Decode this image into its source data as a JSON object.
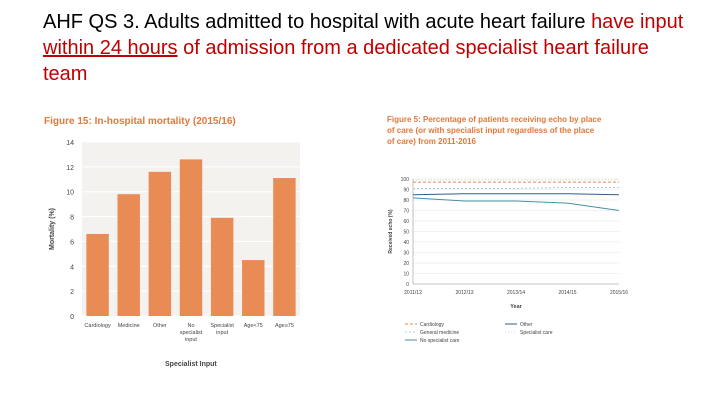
{
  "slide": {
    "title_prefix": "AHF QS 3. Adults admitted to hospital with acute heart failure",
    "title_red_1": "have input ",
    "title_red_underlined": "within 24 hours",
    "title_red_2": " of admission from a dedicated specialist heart failure team"
  },
  "colors": {
    "figure_title": "#e2783a",
    "bar": "#e98b55",
    "axis_text": "#444444",
    "cardiology": "#e9874f",
    "general_medicine": "#9fd3dd",
    "no_specialist_care": "#4b8fa6",
    "other": "#2f5f8a",
    "specialist_care": "#cde4b6"
  },
  "chart_data": [
    {
      "type": "bar",
      "title": "Figure 15: In-hospital mortality (2015/16)",
      "xlabel": "Specialist Input",
      "ylabel": "Mortality (%)",
      "ylim": [
        0,
        14
      ],
      "yticks": [
        0,
        2,
        4,
        6,
        8,
        10,
        12,
        14
      ],
      "grid": true,
      "categories": [
        "Cardiology",
        "Medicine",
        "Other",
        "No specialist input",
        "Specialist input",
        "Age<75",
        "Age≥75"
      ],
      "category_lines": [
        [
          "Cardiology"
        ],
        [
          "Medicine"
        ],
        [
          "Other"
        ],
        [
          "No",
          "specialist",
          "input"
        ],
        [
          "Specialist",
          "input"
        ],
        [
          "Age<75"
        ],
        [
          "Age≥75"
        ]
      ],
      "values": [
        6.6,
        9.8,
        11.6,
        12.6,
        7.9,
        4.5,
        11.1
      ]
    },
    {
      "type": "line",
      "title": "Figure 5: Percentage of patients receiving echo by place of care (or with specialist input regardless of the place of care) from 2011-2016",
      "title_lines": [
        "Figure 5: Percentage of patients receiving echo by place",
        "of care (or with specialist input regardless of the place",
        "of care) from 2011-2016"
      ],
      "xlabel": "Year",
      "ylabel": "Received echo (%)",
      "ylim": [
        0,
        100
      ],
      "yticks": [
        0,
        10,
        20,
        30,
        40,
        50,
        60,
        70,
        80,
        90,
        100
      ],
      "x": [
        "2011/12",
        "2012/13",
        "2013/14",
        "2014/15",
        "2015/16"
      ],
      "legend_position": "bottom",
      "series": [
        {
          "name": "Cardiology",
          "values": [
            97,
            97,
            97,
            97,
            97
          ],
          "dash": "3,2",
          "color_key": "cardiology"
        },
        {
          "name": "Other",
          "values": [
            85,
            86,
            86,
            86,
            85
          ],
          "dash": "",
          "color_key": "other"
        },
        {
          "name": "General medicine",
          "values": [
            91,
            91,
            91,
            92,
            92
          ],
          "dash": "2,2",
          "color_key": "general_medicine"
        },
        {
          "name": "Specialist care",
          "values": [
            99,
            99,
            99,
            99,
            99
          ],
          "dash": "1,2",
          "color_key": "specialist_care"
        },
        {
          "name": "No specialist care",
          "values": [
            82,
            79,
            79,
            77,
            70
          ],
          "dash": "",
          "color_key": "no_specialist_care"
        }
      ]
    }
  ]
}
